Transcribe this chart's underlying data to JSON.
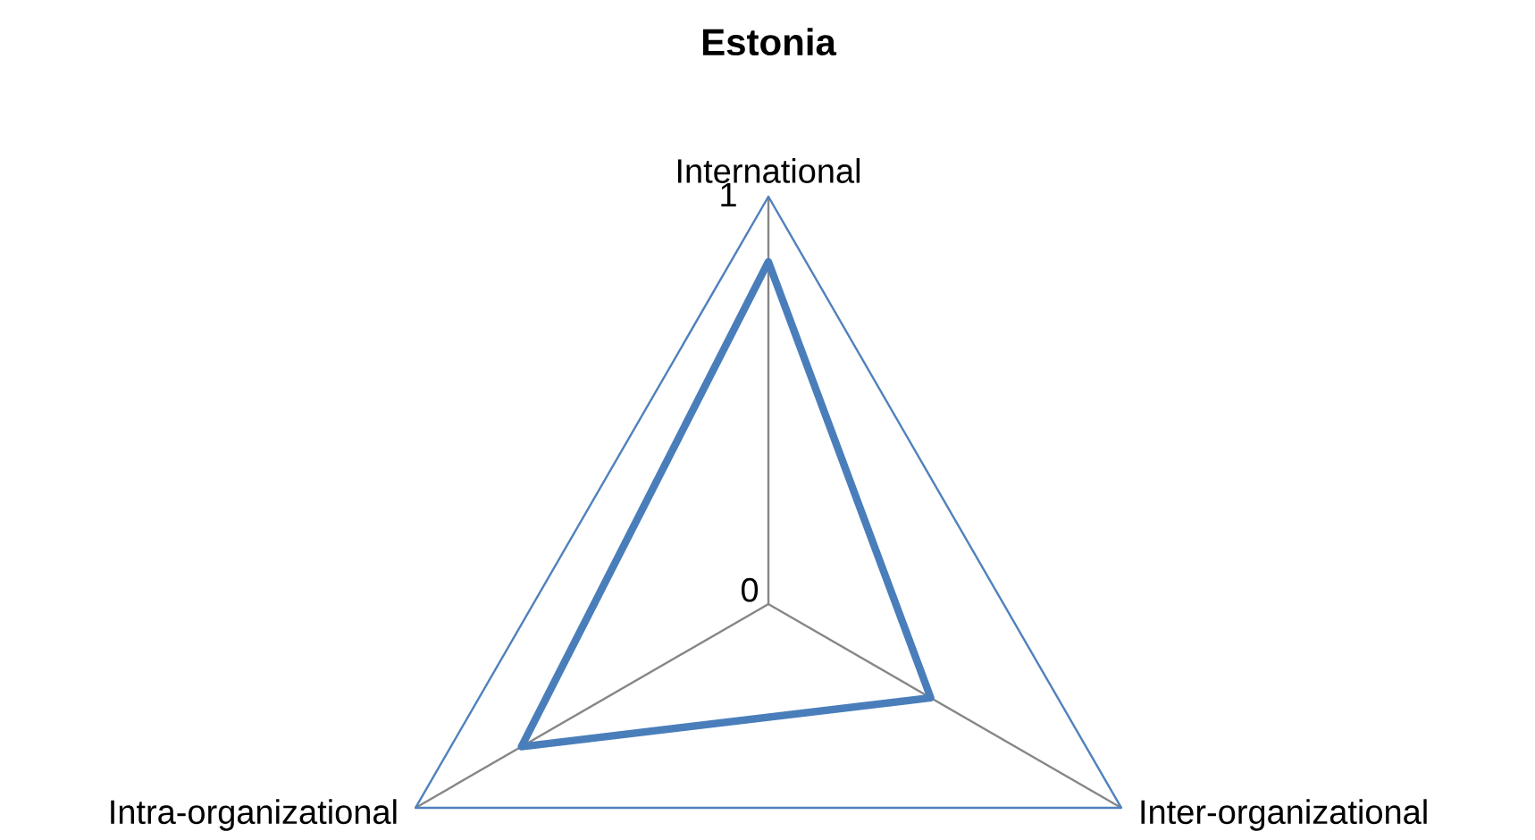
{
  "chart_data": {
    "type": "radar",
    "title": "Estonia",
    "categories": [
      "International",
      "Inter-organizational",
      "Intra-organizational"
    ],
    "ylim": [
      0,
      1
    ],
    "yticks": [
      {
        "value": 0,
        "label": "0"
      },
      1
    ],
    "grid": true,
    "marker": "none",
    "line_style": "solid",
    "series": [
      {
        "color": "#4a7ebb",
        "values": [
          0.84,
          0.46,
          0.7
        ]
      }
    ]
  }
}
